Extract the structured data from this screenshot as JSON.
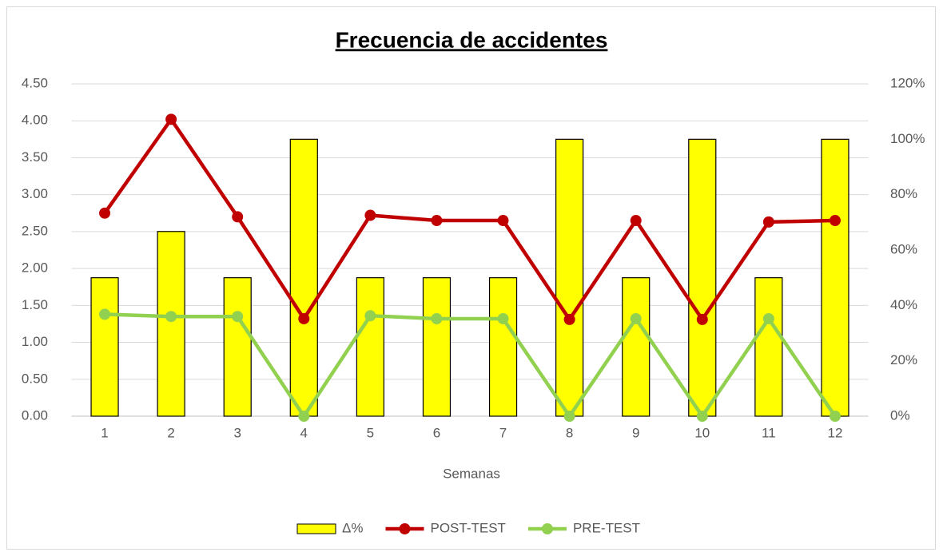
{
  "chart_data": {
    "type": "bar_line",
    "title": "Frecuencia de accidentes",
    "x_label": "Semanas",
    "categories": [
      "1",
      "2",
      "3",
      "4",
      "5",
      "6",
      "7",
      "8",
      "9",
      "10",
      "11",
      "12"
    ],
    "series": [
      {
        "name": "Δ%",
        "type": "bar",
        "axis": "y2",
        "color": "#ffff00",
        "values": [
          50,
          66.7,
          50,
          100,
          50,
          50,
          50,
          100,
          50,
          100,
          50,
          100
        ]
      },
      {
        "name": "POST-TEST",
        "type": "line",
        "color": "#c00000",
        "values": [
          2.75,
          4.02,
          2.7,
          1.32,
          2.72,
          2.65,
          2.65,
          1.31,
          2.65,
          1.31,
          2.63,
          2.65
        ]
      },
      {
        "name": "PRE-TEST",
        "type": "line",
        "color": "#92d050",
        "values": [
          1.38,
          1.35,
          1.35,
          0,
          1.36,
          1.32,
          1.32,
          0,
          1.32,
          0,
          1.32,
          0
        ]
      }
    ],
    "ylim": [
      0,
      4.5
    ],
    "yticks": [
      {
        "value": 0,
        "label": "0.00"
      },
      {
        "value": 0.5,
        "label": "0.50"
      },
      {
        "value": 1,
        "label": "1.00"
      },
      {
        "value": 1.5,
        "label": "1.50"
      },
      {
        "value": 2,
        "label": "2.00"
      },
      {
        "value": 2.5,
        "label": "2.50"
      },
      {
        "value": 3,
        "label": "3.00"
      },
      {
        "value": 3.5,
        "label": "3.50"
      },
      {
        "value": 4,
        "label": "4.00"
      },
      {
        "value": 4.5,
        "label": "4.50"
      }
    ],
    "y2lim": [
      0,
      120
    ],
    "y2ticks": [
      {
        "value": 0,
        "label": "0%"
      },
      {
        "value": 20,
        "label": "20%"
      },
      {
        "value": 40,
        "label": "40%"
      },
      {
        "value": 60,
        "label": "60%"
      },
      {
        "value": 80,
        "label": "80%"
      },
      {
        "value": 100,
        "label": "100%"
      },
      {
        "value": 120,
        "label": "120%"
      }
    ],
    "grid": true,
    "legend": "bottom"
  }
}
